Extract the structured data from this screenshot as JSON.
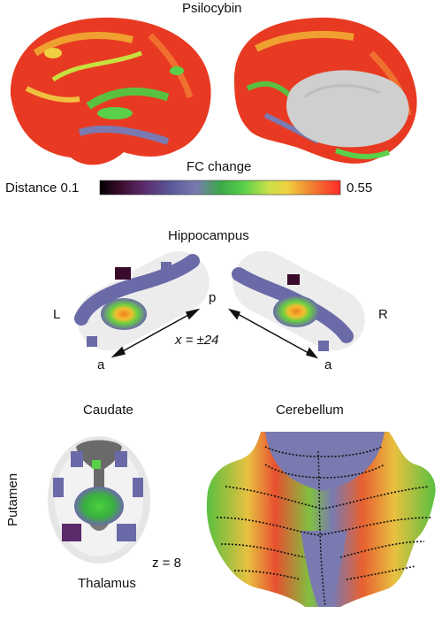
{
  "top": {
    "title": "Psilocybin",
    "colorbar_title": "FC change",
    "colorbar_left_label": "Distance 0.1",
    "colorbar_right_label": "0.55",
    "colorbar_colors": [
      "#000000",
      "#3a0a2a",
      "#5a2a6a",
      "#5a5a9a",
      "#7a7ab0",
      "#3aa84a",
      "#5ad04a",
      "#c8e04a",
      "#f0d040",
      "#f08030",
      "#e83020",
      "#ff2a2a"
    ]
  },
  "hippocampus": {
    "title": "Hippocampus",
    "left_label": "L",
    "right_label": "R",
    "posterior_label": "p",
    "anterior_left_label": "a",
    "anterior_right_label": "a",
    "coordinate_label": "x = ±24"
  },
  "bottom": {
    "caudate_label": "Caudate",
    "putamen_label": "Putamen",
    "thalamus_label": "Thalamus",
    "slice_label": "z = 8",
    "cerebellum_label": "Cerebellum"
  }
}
